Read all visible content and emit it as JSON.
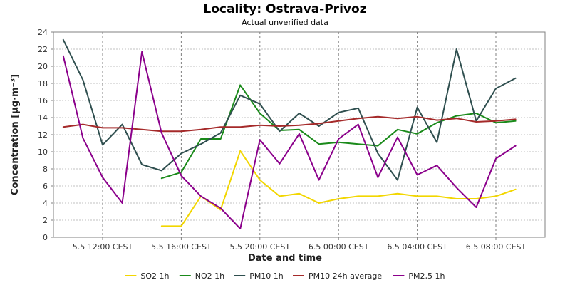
{
  "chart_data": {
    "type": "line",
    "title": "Locality: Ostrava-Privoz",
    "subtitle": "Actual unverified data",
    "xlabel": "Date and time",
    "ylabel": "Concentration [µg·m⁻³]",
    "ylim": [
      0,
      24
    ],
    "yticks": [
      0,
      2,
      4,
      6,
      8,
      10,
      12,
      14,
      16,
      18,
      20,
      22,
      24
    ],
    "x_hours": [
      10,
      11,
      12,
      13,
      14,
      15,
      16,
      17,
      18,
      19,
      20,
      21,
      22,
      23,
      24,
      25,
      26,
      27,
      28,
      29,
      30,
      31,
      32,
      33
    ],
    "xlim_hours": [
      9.5,
      34.5
    ],
    "xticks": [
      {
        "hour": 12,
        "label": "5.5 12:00 CEST"
      },
      {
        "hour": 16,
        "label": "5.5 16:00 CEST"
      },
      {
        "hour": 20,
        "label": "5.5 20:00 CEST"
      },
      {
        "hour": 24,
        "label": "6.5 00:00 CEST"
      },
      {
        "hour": 28,
        "label": "6.5 04:00 CEST"
      },
      {
        "hour": 32,
        "label": "6.5 08:00 CEST"
      }
    ],
    "grid": true,
    "legend_position": "bottom",
    "series": [
      {
        "name": "SO2 1h",
        "color": "#f2d600",
        "values": [
          null,
          null,
          null,
          null,
          null,
          1.3,
          1.3,
          4.8,
          3.2,
          10.1,
          6.7,
          4.8,
          5.1,
          4.0,
          4.5,
          4.8,
          4.8,
          5.1,
          4.8,
          4.8,
          4.5,
          4.5,
          4.8,
          5.6
        ]
      },
      {
        "name": "NO2 1h",
        "color": "#1a8a1a",
        "values": [
          null,
          null,
          null,
          null,
          null,
          6.9,
          7.6,
          11.5,
          11.5,
          17.8,
          14.5,
          12.5,
          12.6,
          10.9,
          11.1,
          10.9,
          10.7,
          12.6,
          12.1,
          13.4,
          14.2,
          14.5,
          13.4,
          13.6
        ]
      },
      {
        "name": "PM10 1h",
        "color": "#2f4f4f",
        "values": [
          23.1,
          18.4,
          10.8,
          13.2,
          8.5,
          7.8,
          9.8,
          10.9,
          12.2,
          16.6,
          15.6,
          12.4,
          14.5,
          13.0,
          14.6,
          15.1,
          9.8,
          6.7,
          15.2,
          11.1,
          22.0,
          13.6,
          17.4,
          18.6
        ]
      },
      {
        "name": "PM10 24h average",
        "color": "#a52a2a",
        "values": [
          12.9,
          13.2,
          12.8,
          12.8,
          12.6,
          12.4,
          12.4,
          12.6,
          12.9,
          12.9,
          13.1,
          13.0,
          13.1,
          13.3,
          13.6,
          13.9,
          14.1,
          13.9,
          14.1,
          13.7,
          13.9,
          13.5,
          13.6,
          13.8
        ]
      },
      {
        "name": "PM2,5 1h",
        "color": "#8b008b",
        "values": [
          21.2,
          11.6,
          7.0,
          4.0,
          21.7,
          12.2,
          7.2,
          4.8,
          3.4,
          1.0,
          11.4,
          8.6,
          12.1,
          6.7,
          11.5,
          13.2,
          7.0,
          11.7,
          7.3,
          8.4,
          5.8,
          3.5,
          9.2,
          10.7
        ]
      }
    ]
  }
}
